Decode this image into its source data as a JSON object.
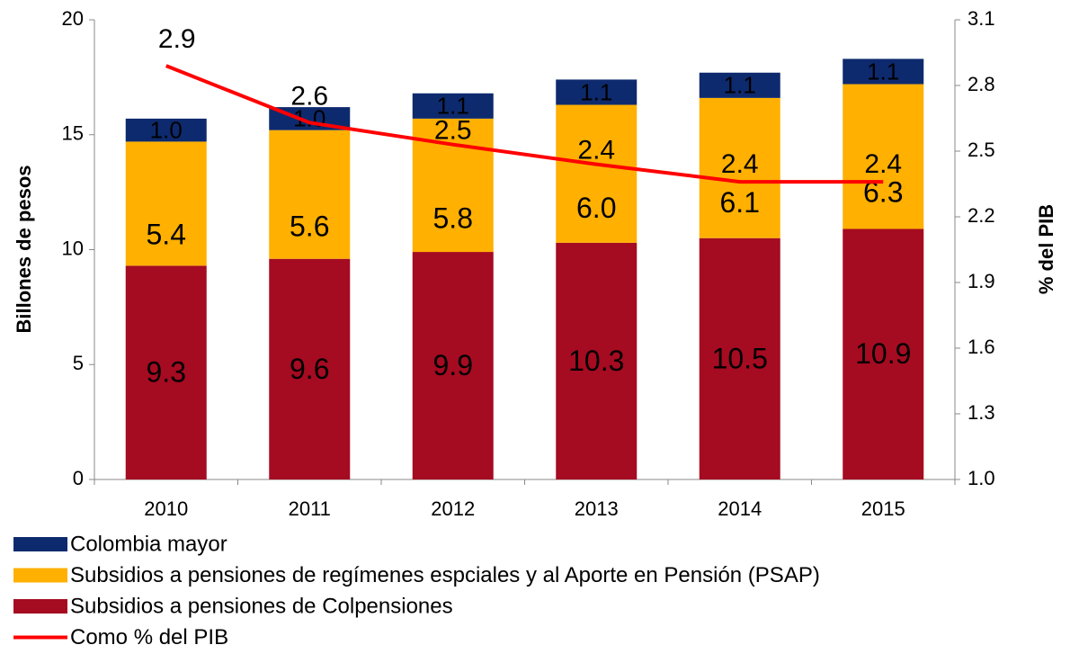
{
  "chart_data": {
    "type": "bar",
    "stacked": true,
    "y_label": "Billones de pesos",
    "y2_label": "% del PIB",
    "categories": [
      "2010",
      "2011",
      "2012",
      "2013",
      "2014",
      "2015"
    ],
    "series": [
      {
        "name": "Subsidios a pensiones de Colpensiones",
        "color": "#a50b21",
        "label_color": "#ffffff",
        "values": [
          9.3,
          9.6,
          9.9,
          10.3,
          10.5,
          10.9
        ]
      },
      {
        "name": "Subsidios a pensiones de regímenes espciales y al Aporte en Pensión (PSAP)",
        "color": "#ffb000",
        "label_color": "#000000",
        "values": [
          5.4,
          5.6,
          5.8,
          6,
          6.1,
          6.3
        ],
        "value_labels": [
          "5.4",
          "5.6",
          "5.8",
          "6.0",
          "6.1",
          "6.3"
        ]
      },
      {
        "name": "Colombia mayor",
        "color": "#0e2a6e",
        "label_color": "#ffffff",
        "values": [
          1,
          1,
          1.1,
          1.1,
          1.1,
          1.1
        ],
        "value_labels": [
          "1.0",
          "1.0",
          "1.1",
          "1.1",
          "1.1",
          "1.1"
        ]
      },
      {
        "name": "Como % del PIB",
        "type": "line",
        "axis": "y2",
        "color": "#ff0000",
        "values": [
          2.89,
          2.63,
          2.53,
          2.44,
          2.36,
          2.36
        ],
        "value_labels": [
          "2.9",
          "2.6",
          "2.5",
          "2.4",
          "2.4",
          "2.4"
        ]
      }
    ],
    "ylim": [
      0,
      20
    ],
    "yticks": [
      0,
      5,
      10,
      15,
      20
    ],
    "y2lim": [
      1,
      3.1
    ],
    "y2ticks": [
      {
        "value": 1,
        "label": "1.0"
      },
      1.3,
      1.6,
      1.9,
      2.2,
      2.5,
      2.8,
      3.1
    ],
    "legend": "bottom"
  }
}
